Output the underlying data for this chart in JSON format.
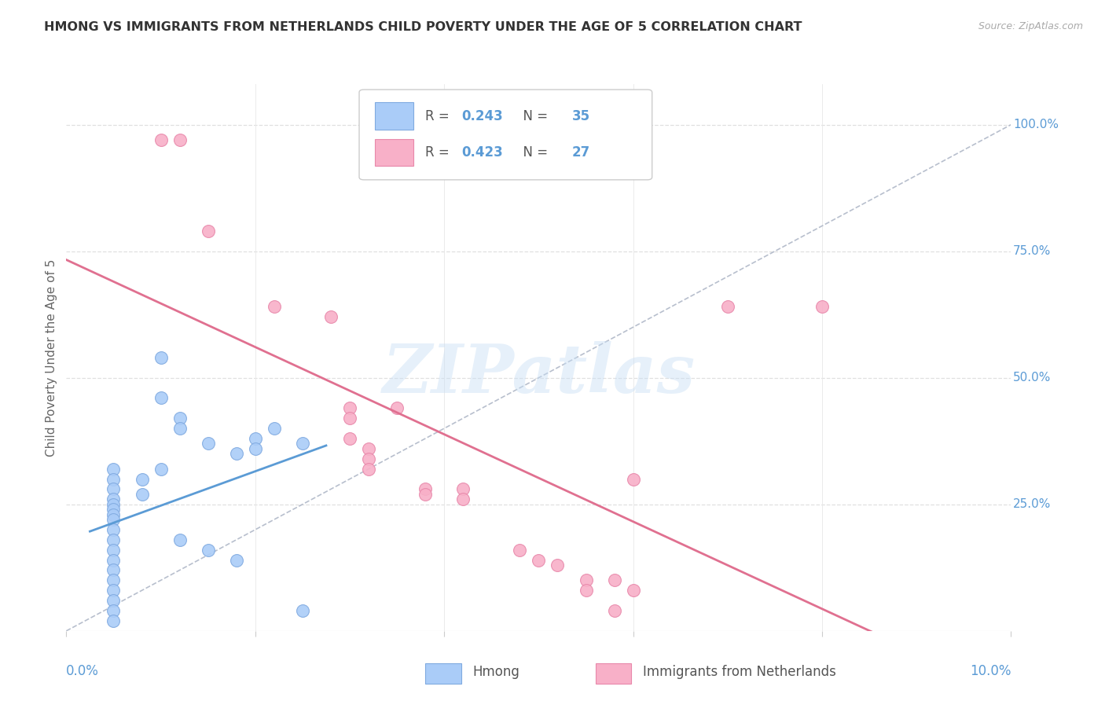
{
  "title": "HMONG VS IMMIGRANTS FROM NETHERLANDS CHILD POVERTY UNDER THE AGE OF 5 CORRELATION CHART",
  "source": "Source: ZipAtlas.com",
  "ylabel": "Child Poverty Under the Age of 5",
  "right_ytick_labels": [
    "100.0%",
    "75.0%",
    "50.0%",
    "25.0%"
  ],
  "right_ytick_values": [
    1.0,
    0.75,
    0.5,
    0.25
  ],
  "watermark": "ZIPatlas",
  "background_color": "#ffffff",
  "grid_color": "#e0e0e0",
  "title_color": "#333333",
  "axis_label_color": "#5b9bd5",
  "hmong_color": "#aaccf8",
  "netherlands_color": "#f8b0c8",
  "hmong_edge_color": "#80aae0",
  "netherlands_edge_color": "#e888aa",
  "trend_hmong_color": "#5b9bd5",
  "trend_netherlands_color": "#e07090",
  "diagonal_color": "#b0b8c8",
  "hmong_points": [
    [
      0.1,
      0.54
    ],
    [
      0.1,
      0.46
    ],
    [
      0.12,
      0.42
    ],
    [
      0.12,
      0.4
    ],
    [
      0.15,
      0.37
    ],
    [
      0.18,
      0.35
    ],
    [
      0.2,
      0.38
    ],
    [
      0.2,
      0.36
    ],
    [
      0.22,
      0.4
    ],
    [
      0.25,
      0.37
    ],
    [
      0.05,
      0.32
    ],
    [
      0.05,
      0.3
    ],
    [
      0.05,
      0.28
    ],
    [
      0.05,
      0.26
    ],
    [
      0.05,
      0.25
    ],
    [
      0.05,
      0.24
    ],
    [
      0.05,
      0.23
    ],
    [
      0.05,
      0.22
    ],
    [
      0.05,
      0.2
    ],
    [
      0.05,
      0.18
    ],
    [
      0.05,
      0.16
    ],
    [
      0.05,
      0.14
    ],
    [
      0.05,
      0.12
    ],
    [
      0.05,
      0.1
    ],
    [
      0.05,
      0.08
    ],
    [
      0.05,
      0.06
    ],
    [
      0.05,
      0.04
    ],
    [
      0.05,
      0.02
    ],
    [
      0.08,
      0.3
    ],
    [
      0.08,
      0.27
    ],
    [
      0.1,
      0.32
    ],
    [
      0.12,
      0.18
    ],
    [
      0.15,
      0.16
    ],
    [
      0.18,
      0.14
    ],
    [
      0.25,
      0.04
    ]
  ],
  "netherlands_points": [
    [
      0.1,
      0.97
    ],
    [
      0.12,
      0.97
    ],
    [
      0.15,
      0.79
    ],
    [
      0.22,
      0.64
    ],
    [
      0.28,
      0.62
    ],
    [
      0.3,
      0.44
    ],
    [
      0.3,
      0.42
    ],
    [
      0.3,
      0.38
    ],
    [
      0.32,
      0.36
    ],
    [
      0.32,
      0.34
    ],
    [
      0.32,
      0.32
    ],
    [
      0.35,
      0.44
    ],
    [
      0.38,
      0.28
    ],
    [
      0.38,
      0.27
    ],
    [
      0.42,
      0.28
    ],
    [
      0.42,
      0.26
    ],
    [
      0.48,
      0.16
    ],
    [
      0.5,
      0.14
    ],
    [
      0.52,
      0.13
    ],
    [
      0.55,
      0.1
    ],
    [
      0.58,
      0.1
    ],
    [
      0.55,
      0.08
    ],
    [
      0.58,
      0.04
    ],
    [
      0.6,
      0.3
    ],
    [
      0.7,
      0.64
    ],
    [
      0.8,
      0.64
    ],
    [
      0.6,
      0.08
    ]
  ],
  "xmin": 0.0,
  "xmax": 10.0,
  "ymin": 0.0,
  "ymax": 1.08,
  "legend_r_hmong": "0.243",
  "legend_n_hmong": "35",
  "legend_r_neth": "0.423",
  "legend_n_neth": "27"
}
